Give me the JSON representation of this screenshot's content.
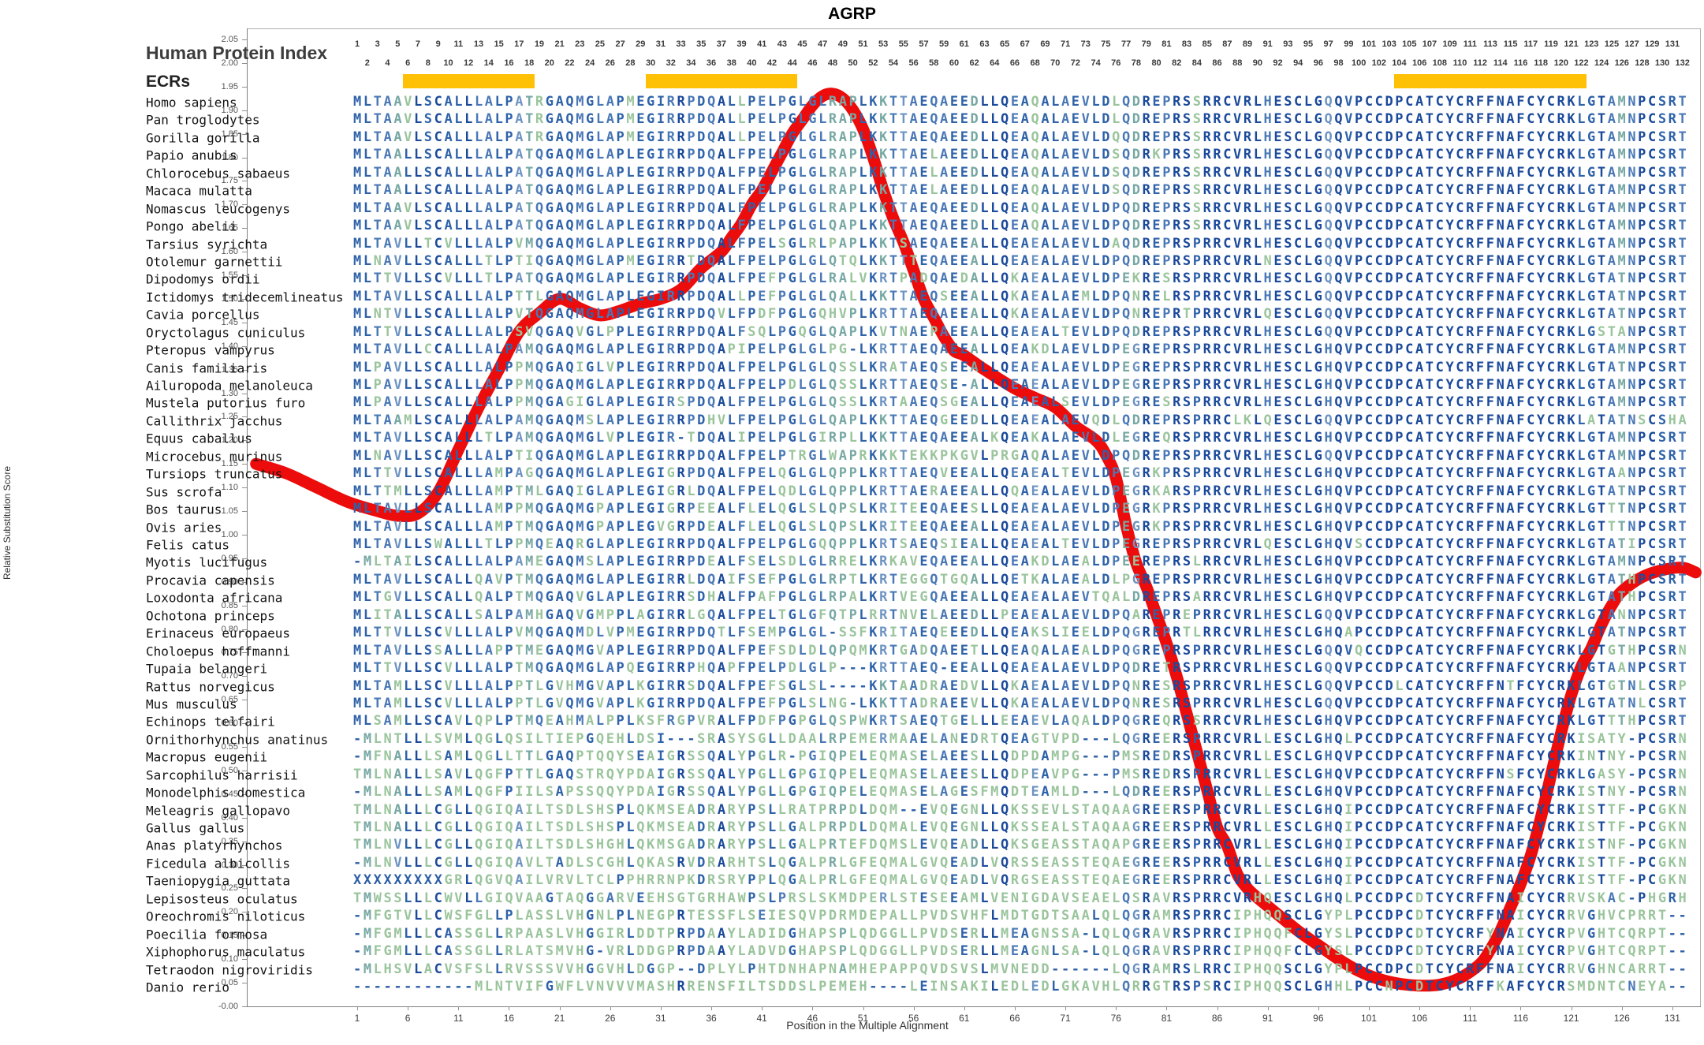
{
  "title": "AGRP",
  "header": {
    "index_label": "Human Protein Index",
    "ecrs_label": "ECRs"
  },
  "colors": {
    "curve_red": "#ec0c0c",
    "ecr_yellow": "#ffc105",
    "conservation_palette": [
      "#1b4a9b",
      "#2e62a9",
      "#4a78b6",
      "#6e94c2",
      "#77a8a3",
      "#9ac49c"
    ],
    "gap_color": "#2e5fa5",
    "axis_gray": "#808080",
    "border_gray": "#b0b0b0"
  },
  "ruler": {
    "start": 1,
    "end": 132
  },
  "ecr_regions": [
    [
      6,
      18
    ],
    [
      30,
      44
    ],
    [
      104,
      122
    ]
  ],
  "y_axis": {
    "label": "Relative Substitution Score",
    "min": 0.0,
    "max": 2.05,
    "step": 0.05
  },
  "x_axis": {
    "label": "Position in the Multiple Alignment",
    "tick_start": 1,
    "tick_step": 5,
    "tick_end": 131
  },
  "alignment": {
    "num_columns": 132,
    "species": [
      {
        "name": "Homo sapiens",
        "seq": "MLTAAVLSCALLLALPATRGAQMGLAPMEGIRRPDQALLPELPGLGLRAPLKKTTAEQAEEDLLQEAQALAEVLDLQDREPRSSRRCVRLHESCLGQQVPCCDPCATCYCRFFNAFCYCRKLGTAMNPCSRT"
      },
      {
        "name": "Pan troglodytes",
        "seq": "MLTAAVLSCALLLALPATRGAQMGLAPMEGIRRPDQALLPELPGLGLRAPLKKTTAEQAEEDLLQEAQALAEVLDLQDREPRSSRRCVRLHESCLGQQVPCCDPCATCYCRFFNAFCYCRKLGTAMNPCSRT"
      },
      {
        "name": "Gorilla gorilla",
        "seq": "MLTAAVLSCALLLALPATRGAQMGLAPMEGIRRPDQALLPELPGLGLRAPLKKTTAEQAEEDLLQEAQALAEVLDQQDREPRSSRRCVRLHESCLGQQVPCCDPCATCYCRFFNAFCYCRKLGTAMNPCSRT"
      },
      {
        "name": "Papio anubis",
        "seq": "MLTAALLSCALLLALPATQGAQMGLAPLEGIRRPDQALFPELPGLGLRAPLKKTTAELAEEDLLQEAQALAEVLDSQDRKPRSSRRCVRLHESCLGQQVPCCDPCATCYCRFFNAFCYCRKLGTAMNPCSRT"
      },
      {
        "name": "Chlorocebus sabaeus",
        "seq": "MLTAALLSCALLLALPATQGAQMGLAPLEGIRRPDQALFPELPGLGLRAPLKKTTAELAEEDLLQEAQALAEVLDSQDREPRSSRRCVRLHESCLGQQVPCCDPCATCYCRFFNAFCYCRKLGTAMNPCSRT"
      },
      {
        "name": "Macaca mulatta",
        "seq": "MLTAALLSCALLLALPATQGAQMGLAPLEGIRRPDQALFPELPGLGLRAPLKKTTAELAEEDLLQEAQALAEVLDSQDREPRSSRRCVRLHESCLGQQVPCCDPCATCYCRFFNAFCYCRKLGTAMNPCSRT"
      },
      {
        "name": "Nomascus leucogenys",
        "seq": "MLTAAVLSCALLLALPATQGAQMGLAPLEGIRRPDQALFPELPGLGLRAPLKKTTAEQAEEDLLQEAQALAEVLDPQDREPRSSRRCVRLHESCLGQQVPCCDPCATCYCRFFNAFCYCRKLGTAMNPCSRT"
      },
      {
        "name": "Pongo abelii",
        "seq": "MLTAAVLSCALLLALPATQGAQMGLAPLEGIRRPDQALFPELPGLGLQAPLKKTTAEQAEEDLLQEAQALAEVLDPQDREPRSSRRCVRLHESCLGQQVPCCDPCATCYCRFFNAFCYCRKLGTAMNPCSRT"
      },
      {
        "name": "Tarsius syrichta",
        "seq": "MLTAVLLTCVLLLALPVMQGAQMGLAPLEGIRRPDQALFPELSGLRLPAPLKKTSAEQAEEALLQEAEALAEVLDAQDREPRSPRRCVRLHESCLGQQVPCCDPCATCYCRFFNAFCYCRKLGTAMNPCSRT"
      },
      {
        "name": "Otolemur garnettii",
        "seq": "MLNAVLLSCALLLTLPTIQGAQMGLAPMEGIRRTDQALFPELPGLGLQTQLKKTTTEQAEEALLQEAEALAEVLDPQDREPRSPRRCVRLNESCLGQQVPCCDPCATCYCRFFNAFCYCRKLGTAMNPCSRT"
      },
      {
        "name": "Dipodomys ordii",
        "seq": "MLTTVLLSCVLLLTLPATQGAQMGLAPLEGIRRPDQALFPEFPGLGLRALVKRTPADQAEDALLQKAEALAEVLDPEKRESRSPRRCVRLHESCLGQQVPCCDPCATCYCRFFNAFCYCRKLGTATNPCSRT"
      },
      {
        "name": "Ictidomys tridecemlineatus",
        "seq": "MLTAVLLSCALLLALPTTLGAQMGLAPLEGIRRPDQALLPEFPGLGLQALLKKTTAEQSEEALLQKAEALAEMLDPQNRELRSPRRCVRLHESCLGQQVPCCDPCATCYCRFFNAFCYCRKLGTATNPCSRT"
      },
      {
        "name": "Cavia porcellus",
        "seq": "MLNTVLLSCALLLALPVTQGAQMGLAPLEGIRRPDQVLFPDFPGLGQHVPLKRTTAEQAEEALLQKAEALAEVLDPQNREPRTPRRCVRLQESCLGQQVPCCDPCATCYCRFFNAFCYCRKLGTATNPCSRT"
      },
      {
        "name": "Oryctolagus cuniculus",
        "seq": "MLTTVLLSCALLLALPSVQGAQVGLPPLEGIRRPDQALFSQLPGQGLQAPLKVTNAEPAEEALLQEAEALTEVLDPQDREPRSPRRCVRLHESCLGQQVPCCDPCATCYCRFFNAFCYCRKLGSTANPCSRT"
      },
      {
        "name": "Pteropus vampyrus",
        "seq": "MLTAVLLCCALLLALPAMQGAQMGLAPLEGIRRPDQAPIPELPGLGLPG-LKRTTAEQAEEALLQEAKDLAEVLDPEGREPRSPRRCVRLHESCLGHQVPCCDPCATCYCRFFNAFCYCRKLGTAMNPCSRT"
      },
      {
        "name": "Canis familiaris",
        "seq": "MLPAVLLSCALLLALPPMQGAQIGLVPLEGIRRPDQALFPELPGLGLQSSLKRATAEQSEEALLQEAEALAEVLDPEGREPRSPRRCVRLHESCLGHQVPCCDPCATCYCRFFNAFCYCRKLGTATNPCSRT"
      },
      {
        "name": "Ailuropoda melanoleuca",
        "seq": "MLPAVLLSCALLLALPPMQGAQMGLAPLEGIRRPDQALFPELPDLGLQSSLKRTTAEQSE-ALLQEAEALAEVLDPEGREPRSPRRCVRLHESCLGHQVPCCDPCATCYCRFFNAFCYCRKLGTAMNPCSRT"
      },
      {
        "name": "Mustela putorius furo",
        "seq": "MLPAVLLSCALLLALPPMQGAGIGLAPLEGIRSPDQALFPELPGLGLQSSLKRTAAEQSGEALLQEAEALSEVLDPEGRESRSPRRCVRLHESCLGHQVPCCDPCATCYCRFFNAFCYCRKLGTAMNPCSRT"
      },
      {
        "name": "Callithrix jacchus",
        "seq": "MLTAAMLSCALLLALPAMQGAQMSLAPLEGIRRPDHVLFPELPGLGLQAPLKKTTAEQGEEDLLQEAEALAEVQDLQDREPRSPRRCLKLQESCLGQQVPCCDPCATCYCRFFNAFCYCRKLATATNSCSHA"
      },
      {
        "name": "Equus caballus",
        "seq": "MLTAVLLSCALLLTLPAMQGAQMGLVPLEGIR-TDQALIPELPGLGIRPLLKKTTAEQAEEALKQEAKALAEVLDLEGREQRSPRRCVRLHESCLGHQVPCCDPCATCYCRFFNAFCYCRKLGTAMNPCSRT"
      },
      {
        "name": "Microcebus murinus",
        "seq": "MLNAVLLSCALLLALPTIQGAQMGLAPLEGIRRPDQALFPELPTRGLWAPRKKKTEKKPKGVLPRGAQALAEVLDPQDREPRSPRRCVRLHESCLGQQVPCCDPCATCYCRFFNAFCYCRKLGTAMNPCSRT"
      },
      {
        "name": "Tursiops truncatus",
        "seq": "MLTTVLLSCALLLAMPAGQGAQMGLAPLEGIGRPDQALFPELQGLGLQPPLKRTTAEQVEEALLQEAEALTEVLDPEGRKPRSPRRCVRLHESCLGHQVPCCDPCATCYCRFFNAFCYCRKLGTAANPCSRT"
      },
      {
        "name": "Sus scrofa",
        "seq": "MLTTMLLSCALLLAMPTMLGAQIGLAPLEGIGRLDQALFPELQDLGLQPPLKRTTAERAEEALLQQAEALAEVLDPEGRKARSPRRCVRLHESCLGHQVPCCDPCATCYCRFFNAFCYCRKLGTATNPCSRT"
      },
      {
        "name": "Bos taurus",
        "seq": "MLTAVLLSCALLLAMPPMQGAQMGPAPLEGIGRPEEALFLELQGLSLQPSLKRITEEQAEESLLQEAEALAEVLDPEGRKPRSPRRCVRLHESCLGHQVPCCDPCATCYCRFFNAFCYCRKLGTTTNPCSRT"
      },
      {
        "name": "Ovis aries",
        "seq": "MLTAVLLSCALLLAMPTMQGAQMGPAPLEGVGRPDEALFLELQGLSLQPSLKRITEEQAEEALLQEAEALAEVLDPEGRKPRSPRRCVRLHESCLGHQVPCCDPCATCYCRFFNAFCYCRKLGTTTNPCSRT"
      },
      {
        "name": "Felis catus",
        "seq": "MLTAVLLSWALLLTLPPMQEAQRGLAPLEGIRRPDQALFPELPGLGQQPPLKRTSAEQSIEALLQEAEALTEVLDPEGREPRSPRRCVRLQESCLGHQVSCCDPCATCYCRFFNAFCYCRKLGTATIPCSRT"
      },
      {
        "name": "Myotis lucifugus",
        "seq": "-MLTAILSCALLLALPAMEGAQMSLAPLEGIRRPDEALFSELSDLGLRRELKRKAVEQAEEALLQEAKDLAEALDPEEREPRSLRRCVRLHESCLGHQVPCCDPCATCYCRFFNAFCYCRKLGTAMNPCSRT"
      },
      {
        "name": "Procavia capensis",
        "seq": "MLTAVLLSCALLQAVPTMQGAQMGLAPLEGIRRLDQAIFSEFPGLGLRPTLKRTEGGQTGQALLQETKALAEALDLPGREPRSPRRCVRLHESCLGHQVPCCDPCATCYCRFFNAFCYCRKLGTATHPCSRT"
      },
      {
        "name": "Loxodonta africana",
        "seq": "MLTGVLLSCALLQALPTMQGAQVGLAPLEGIRRSDHALFPAFPGLGLRPALKRTVEGQAEEALLQEAEALAEVTQALDREPRSARRCVRLHESCLGHQVPCCDPCATCYCRFFNAFCYCRKLGTATHPCSRT"
      },
      {
        "name": "Ochotona princeps",
        "seq": "MLITALLSCALLSALPAMHGAQVGMPPLAGIRRLGQALFPELTGLGFQTPLRRTNVELAEEDLLPEAEALAEVLDPQAREPREPRRCVRLHESCLGQQVPCCDPCATCYCRFFNAFCYCRKLGTANNPCSRT"
      },
      {
        "name": "Erinaceus europaeus",
        "seq": "MLTTVLLSCVLLLALPVMQGAQMDLVPMEGIRRPDQTLFSEMPGLGL-SSFKRITAEQEEEDLLQEAKSLIEELDPQGREPRTLRRCVRLHESCLGHQAPCCDPCATCYCRFFNAFCYCRKLGTATNPCSRT"
      },
      {
        "name": "Choloepus hoffmanni",
        "seq": "MLTAVLLSSALLLAPPTMEGAQMGVAPLEGIRRPDQALFPEFSDLDLQPQMKRTGADQAEETLLQEAQALAEALDPQGREPRSPRRCVRLHESCLGQQVQCCDPCATCYCRFFNAFCYCRKLGTGTHPCSRN"
      },
      {
        "name": "Tupaia belangeri",
        "seq": "MLTTVLLSCVLLLALPTMQGAQMGLAPQEGIRRPHQAPFPELPDLGLP---KRTTAEQ-EEALLQEAEALAEVLDPQDRETRSPRRCVRLHESCLGQQVPCCDPCATCYCRFFNAFCYCRKLGTAANPCSRT"
      },
      {
        "name": "Rattus norvegicus",
        "seq": "MLTAMLLSCVLLLALPPTLGVHMGVAPLKGIRRSDQALFPEFSGLSL----KKTAADRAEDVLLQKAEALAEVLDPQNRESRSPRRCVRLHESCLGQQVPCCDLCATCYCRFFNTFCYCRKLGTGTNLCSRP"
      },
      {
        "name": "Mus musculus",
        "seq": "MLTAMLLSCVLLLALPPTLGVQMGVAPLKGIRRPDQALFPEFPGLSLNG-LKKTTADRAEEVLLQKAEALAEVLDPQNRESRSPRRCVRLHESCLGQQVPCCDPCATCYCRFFNAFCYCRKLGTATNLCSRT"
      },
      {
        "name": "Echinops telfairi",
        "seq": "MLSAMLLSCAVLQPLPTMQEAHMALPPLKSFRGPVRALFPDFPGPGLQSPWKRTSAEQTGELLLEEAEVLAQALDPQGREQRSSRRCVRLHESCLGHQVPCCDPCATCYCRFFNAFCYCRKLGTTTHPCSRT"
      },
      {
        "name": "Ornithorhynchus anatinus",
        "seq": "-MLNTLLLSVMLQGLQSILTIEPGQEHLDSI---SRASYSGLLDAALRPEMERMAAELANEDRTQEAGTVPD---LQGREERSPRRCVRLLESCLGHQLPCCDPCATCYCRFFNAFCYCRKISATY-PCSRN"
      },
      {
        "name": "Macropus eugenii",
        "seq": "-MFNALLLSAMLQGLLTTLGAQPTQQYSEAIGRSSQALYPGLR-PGIQPELEQMASELAEESLLQDPDAMPG---PMSREDRSPRRCVRLLESCLGHQVPCCDPCATCYCRFFNAFCYCRKINTNY-PCSRN"
      },
      {
        "name": "Sarcophilus harrisii",
        "seq": "TMLNALLLSAVLQGFPTTLGAQSTRQYPDAIGRSSQALYPGLLGPGIQPELEQMASELAEESLLQDPEAVPG---PMSREDRSPRRCVRLLESCLGHQVPCCDPCATCYCRFFNSFCYCRKLGASY-PCSRN"
      },
      {
        "name": "Monodelphis domestica",
        "seq": "-MLNALLLSAMLQGFPIILSAPSSQQYPDAIGRSSQALYPGLLGPGIQPELEQMASELAGESFMQDTEAMLD---LQDREERSPRRCVRLLESCLGHQVPCCDPCATCYCRFFNAFCYCRKISTNY-PCSRN"
      },
      {
        "name": "Meleagris gallopavo",
        "seq": "TMLNALLLCGLLQGIQAILTSDLSHSPLQKMSEADRARYPSLLRATPRPDLDQM--EVQEGNLLQKSSEVLSTAQAAGREERSPRRCVRLLESCLGHQIPCCDPCATCYCRFFNAFCYCRKISTTF-PCGKN"
      },
      {
        "name": "Gallus gallus",
        "seq": "TMLNALLLCGLLQGIQAILTSDLSHSPLQKMSEADRARYPSLLGALPRPDLDQMALEVQEGNLLQKSSEALSTAQAAGREERSPRRCVRLLESCLGHQIPCCDPCATCYCRFFNAFCYCRKISTTF-PCGKN"
      },
      {
        "name": "Anas platyrhynchos",
        "seq": "TMLNVLLLCGLLQGIQAILTSDLSHGHLQKMSGADRARYPSLLGALPRTEFDQMSLEVQEADLLQKSGEASSTAQAPGREERSPRRCVRLLESCLGHQIPCCDPCATCYCRFFNAFCYCRKISTNF-PCGKN"
      },
      {
        "name": "Ficedula albicollis",
        "seq": "-MLNVLLLCGLLQGIQAVLTADLSCGHLQKASRVDRARHTSLQGALPRLGFEQMALGVQEADLVQRSSEASSTEQAEGREERSPRRCVRLLESCLGHQIPCCDPCATCYCRFFNAFCYCRKISTTF-PCGKN"
      },
      {
        "name": "Taeniopygia guttata",
        "seq": "XXXXXXXXXGRLQGVQAILVRVLTCLPPHRRNPKDRSRYPPLQGALPRLGFEQMALGVQEADLVQRGSEASSTEQAEGREERSPRRCVRLLESCLGHQIPCCDPCATCYCRFFNAFCYCRKISTTF-PCGKN"
      },
      {
        "name": "Lepisosteus oculatus",
        "seq": "TMWSSLLLCWVLLGIQVAAGTAQGGARVEEHSGTGRHAWPSLPRSLSKMDPERLSTESEEAMLVENIGDAVSEAELQSRAVRSPRRCVRHQESCLGHQLPCCDPCDTCYCRFFNAICYCRRVSKAC-PHGRH"
      },
      {
        "name": "Oreochromis niloticus",
        "seq": "-MFGTVLLCWSFGLLPLASSLVHGNLPLNEGPRTESSFLSEIESQVPDRMDEPALLPVDSVHFLMDTGDTSAALQLQGRAMRSPRRCIPHQQSCLGYPLPCCDPCDTCYCRFFNAICYCRRVGHVCPRRT--"
      },
      {
        "name": "Poecilia formosa",
        "seq": "-MFGMLLLCASSGLLRPAASLVHGGIRLDDTPRPDAAYLADIDGHAPSPLQDGGLLPVDSERLLMEAGNSSA-LQLQGRAVRSPRRCIPHQQFCLGYSLPCCDPCDTCYCRFYNAICYCRPVGHTCQRPT--"
      },
      {
        "name": "Xiphophorus maculatus",
        "seq": "-MFGMLLLCASSGLLRLATSMVHG-VRLDDGPRPDAAYLADVDGHAPSPLQDGGLLPVDSERLLMEAGNLSA-LQLQGRAVRSPRRCIPHQQFCLGYSLPCCDPCDTCYCRFYNAICYCRPVGHTCQRPT--"
      },
      {
        "name": "Tetraodon nigroviridis",
        "seq": "-MLHSVLACVSFSLLRVSSSVVHGGVHLDGGP--DPLYLPHTDNHAPNAMHEPAPPQVDSVSLMVNEDD------LQGRAMRSLRRCIPHQQSCLGYPLPCCDPCDTCYCRFFNAICYCRRVGHNCARRT--"
      },
      {
        "name": "Danio rerio",
        "seq": "------------MLNTVIFGWFLVNVVVMASHRRENSFILTSDDSLPEMEH----LEINSAKILEDLEDLGKAVHLQRRGTRSPSRCIPHQQSCLGHHLPCCNPCDTCYCRFFKAFCYCRSMDNTCNEYA--"
      }
    ]
  },
  "chart_data": {
    "type": "line",
    "title": "AGRP",
    "xlabel": "Position in the Multiple Alignment",
    "ylabel": "Relative Substitution Score",
    "ylim": [
      0.0,
      2.05
    ],
    "xlim": [
      1,
      132
    ],
    "legend_position": "none",
    "grid": false,
    "series_name": "Relative Substitution Score",
    "points": [
      [
        -9,
        1.15
      ],
      [
        -6,
        1.13
      ],
      [
        -3,
        1.1
      ],
      [
        0,
        1.07
      ],
      [
        3,
        1.05
      ],
      [
        5,
        1.04
      ],
      [
        7,
        1.045
      ],
      [
        9,
        1.09
      ],
      [
        11,
        1.18
      ],
      [
        13,
        1.27
      ],
      [
        15,
        1.35
      ],
      [
        17,
        1.43
      ],
      [
        19,
        1.47
      ],
      [
        21,
        1.5
      ],
      [
        23,
        1.48
      ],
      [
        25,
        1.465
      ],
      [
        27,
        1.475
      ],
      [
        29,
        1.49
      ],
      [
        31,
        1.5
      ],
      [
        33,
        1.52
      ],
      [
        35,
        1.565
      ],
      [
        37,
        1.6
      ],
      [
        38,
        1.63
      ],
      [
        39,
        1.66
      ],
      [
        40,
        1.7
      ],
      [
        41,
        1.73
      ],
      [
        42,
        1.77
      ],
      [
        43,
        1.81
      ],
      [
        44,
        1.85
      ],
      [
        45,
        1.88
      ],
      [
        46,
        1.91
      ],
      [
        47,
        1.93
      ],
      [
        48,
        1.935
      ],
      [
        49,
        1.925
      ],
      [
        50,
        1.9
      ],
      [
        51,
        1.86
      ],
      [
        52,
        1.8
      ],
      [
        53,
        1.73
      ],
      [
        54,
        1.67
      ],
      [
        55,
        1.62
      ],
      [
        56,
        1.56
      ],
      [
        57,
        1.5
      ],
      [
        58,
        1.46
      ],
      [
        59,
        1.42
      ],
      [
        60,
        1.39
      ],
      [
        61,
        1.38
      ],
      [
        63,
        1.35
      ],
      [
        66,
        1.31
      ],
      [
        68,
        1.29
      ],
      [
        70,
        1.27
      ],
      [
        72,
        1.23
      ],
      [
        74,
        1.2
      ],
      [
        75,
        1.17
      ],
      [
        76,
        1.12
      ],
      [
        77,
        1.02
      ],
      [
        78,
        0.94
      ],
      [
        79,
        0.89
      ],
      [
        80,
        0.83
      ],
      [
        81,
        0.77
      ],
      [
        82,
        0.7
      ],
      [
        83,
        0.62
      ],
      [
        84,
        0.54
      ],
      [
        85,
        0.46
      ],
      [
        86,
        0.38
      ],
      [
        87,
        0.34
      ],
      [
        88,
        0.28
      ],
      [
        89,
        0.25
      ],
      [
        90,
        0.23
      ],
      [
        92,
        0.195
      ],
      [
        94,
        0.16
      ],
      [
        96,
        0.13
      ],
      [
        98,
        0.1
      ],
      [
        100,
        0.075
      ],
      [
        102,
        0.058
      ],
      [
        104,
        0.048
      ],
      [
        106,
        0.044
      ],
      [
        108,
        0.046
      ],
      [
        110,
        0.06
      ],
      [
        112,
        0.09
      ],
      [
        113,
        0.12
      ],
      [
        114,
        0.16
      ],
      [
        115,
        0.21
      ],
      [
        116,
        0.26
      ],
      [
        117,
        0.32
      ],
      [
        118,
        0.4
      ],
      [
        119,
        0.49
      ],
      [
        120,
        0.58
      ],
      [
        121,
        0.66
      ],
      [
        122,
        0.72
      ],
      [
        123,
        0.76
      ],
      [
        124,
        0.81
      ],
      [
        125,
        0.85
      ],
      [
        126,
        0.88
      ],
      [
        128,
        0.91
      ],
      [
        130,
        0.925
      ],
      [
        132,
        0.93
      ],
      [
        133.3,
        0.92
      ]
    ]
  }
}
